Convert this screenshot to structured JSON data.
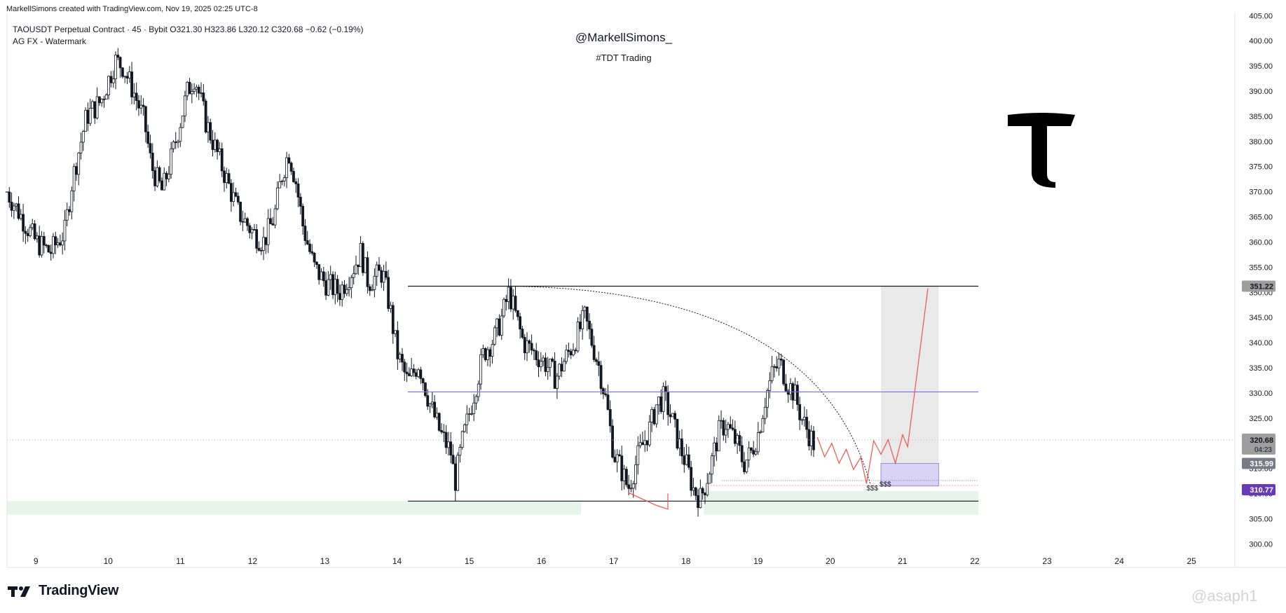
{
  "header": {
    "created_by": "MarkellSimons created with TradingView.com, Nov 19, 2025 02:25 UTC-8",
    "symbol_line": "TAOUSDT Perpetual Contract · 45 · Bybit  O321.30  H323.86  L320.12  C320.68  −0.62 (−0.19%)",
    "indicator_line": "AG FX - Watermark"
  },
  "watermark_text": {
    "handle": "@MarkellSimons_",
    "tag": "#TDT Trading"
  },
  "footer": {
    "brand": "TradingView",
    "credit": "@asaph1"
  },
  "chart_data": {
    "type": "candlestick",
    "title": "",
    "x_label": "",
    "y_label": "",
    "x_ticks": [
      "9",
      "10",
      "11",
      "12",
      "13",
      "14",
      "15",
      "16",
      "17",
      "18",
      "19",
      "20",
      "21",
      "22",
      "23",
      "24",
      "25"
    ],
    "x_range": [
      8.6,
      25.6
    ],
    "y_ticks": [
      "300.00",
      "305.00",
      "310.00",
      "315.00",
      "320.00",
      "325.00",
      "330.00",
      "335.00",
      "340.00",
      "345.00",
      "350.00",
      "355.00",
      "360.00",
      "365.00",
      "370.00",
      "375.00",
      "380.00",
      "385.00",
      "390.00",
      "395.00",
      "400.00",
      "405.00"
    ],
    "y_range": [
      297.4,
      405.6
    ],
    "price_path": [
      [
        8.6,
        370
      ],
      [
        8.8,
        365
      ],
      [
        9.0,
        360
      ],
      [
        9.2,
        358
      ],
      [
        9.4,
        362
      ],
      [
        9.5,
        372
      ],
      [
        9.7,
        385
      ],
      [
        9.9,
        388
      ],
      [
        10.0,
        392
      ],
      [
        10.1,
        396
      ],
      [
        10.2,
        395
      ],
      [
        10.35,
        390
      ],
      [
        10.5,
        384
      ],
      [
        10.6,
        375
      ],
      [
        10.75,
        370
      ],
      [
        10.9,
        378
      ],
      [
        11.0,
        384
      ],
      [
        11.1,
        390
      ],
      [
        11.2,
        393
      ],
      [
        11.35,
        384
      ],
      [
        11.5,
        378
      ],
      [
        11.65,
        372
      ],
      [
        11.8,
        366
      ],
      [
        12.0,
        362
      ],
      [
        12.15,
        360
      ],
      [
        12.3,
        365
      ],
      [
        12.4,
        373
      ],
      [
        12.5,
        378
      ],
      [
        12.6,
        372
      ],
      [
        12.7,
        363
      ],
      [
        12.85,
        355
      ],
      [
        13.0,
        352
      ],
      [
        13.2,
        350
      ],
      [
        13.4,
        355
      ],
      [
        13.5,
        358
      ],
      [
        13.6,
        352
      ],
      [
        13.8,
        354
      ],
      [
        13.9,
        347
      ],
      [
        14.0,
        338
      ],
      [
        14.15,
        332
      ],
      [
        14.3,
        336
      ],
      [
        14.45,
        328
      ],
      [
        14.6,
        322
      ],
      [
        14.75,
        318
      ],
      [
        14.8,
        312
      ],
      [
        14.9,
        320
      ],
      [
        15.0,
        326
      ],
      [
        15.1,
        332
      ],
      [
        15.2,
        338
      ],
      [
        15.35,
        341
      ],
      [
        15.45,
        345
      ],
      [
        15.55,
        350
      ],
      [
        15.65,
        345
      ],
      [
        15.75,
        340
      ],
      [
        15.9,
        338
      ],
      [
        16.05,
        336
      ],
      [
        16.2,
        333
      ],
      [
        16.3,
        336
      ],
      [
        16.45,
        340
      ],
      [
        16.6,
        345
      ],
      [
        16.7,
        340
      ],
      [
        16.8,
        335
      ],
      [
        16.9,
        328
      ],
      [
        17.0,
        318
      ],
      [
        17.1,
        315
      ],
      [
        17.2,
        311
      ],
      [
        17.35,
        318
      ],
      [
        17.5,
        323
      ],
      [
        17.6,
        328
      ],
      [
        17.7,
        329
      ],
      [
        17.8,
        325
      ],
      [
        17.9,
        320
      ],
      [
        18.0,
        316
      ],
      [
        18.1,
        311
      ],
      [
        18.2,
        309
      ],
      [
        18.25,
        311
      ],
      [
        18.35,
        316
      ],
      [
        18.45,
        322
      ],
      [
        18.55,
        324
      ],
      [
        18.7,
        320
      ],
      [
        18.8,
        316
      ],
      [
        18.9,
        318
      ],
      [
        19.0,
        322
      ],
      [
        19.1,
        329
      ],
      [
        19.2,
        334
      ],
      [
        19.3,
        336
      ],
      [
        19.4,
        332
      ],
      [
        19.5,
        330
      ],
      [
        19.6,
        325
      ],
      [
        19.7,
        322
      ],
      [
        19.8,
        319
      ]
    ],
    "projection_path": [
      [
        19.82,
        321.2
      ],
      [
        19.92,
        317.3
      ],
      [
        20.02,
        320.0
      ],
      [
        20.12,
        316.0
      ],
      [
        20.22,
        318.8
      ],
      [
        20.32,
        314.8
      ],
      [
        20.42,
        317.2
      ],
      [
        20.5,
        312.0
      ],
      [
        20.6,
        320.5
      ],
      [
        20.7,
        317.8
      ],
      [
        20.8,
        320.7
      ],
      [
        20.9,
        316.0
      ],
      [
        21.0,
        321.7
      ],
      [
        21.07,
        319.3
      ],
      [
        21.35,
        350.8
      ]
    ],
    "levels": {
      "range_high": 351.22,
      "mid_level": 330.2,
      "range_low": 308.5,
      "current_price": 320.68,
      "box_top": 315.99,
      "target_label": 310.77
    },
    "price_labels": {
      "range_high": "351.22",
      "current_price": "320.68",
      "countdown": "04:23",
      "box_top": "315.99",
      "target": "310.77"
    },
    "annotations": {
      "liquidity_1": "$$$",
      "liquidity_2": "$$$"
    },
    "colors": {
      "candle": "#131722",
      "mid_line": "#7b68ee",
      "projection": "#ef5350",
      "demand_zone": "#e6f4ea",
      "target_box": "#e9e9ea",
      "purple_box": "#d9d3f5",
      "current_label": "#9e9e9e",
      "target_label": "#673ab7"
    }
  }
}
